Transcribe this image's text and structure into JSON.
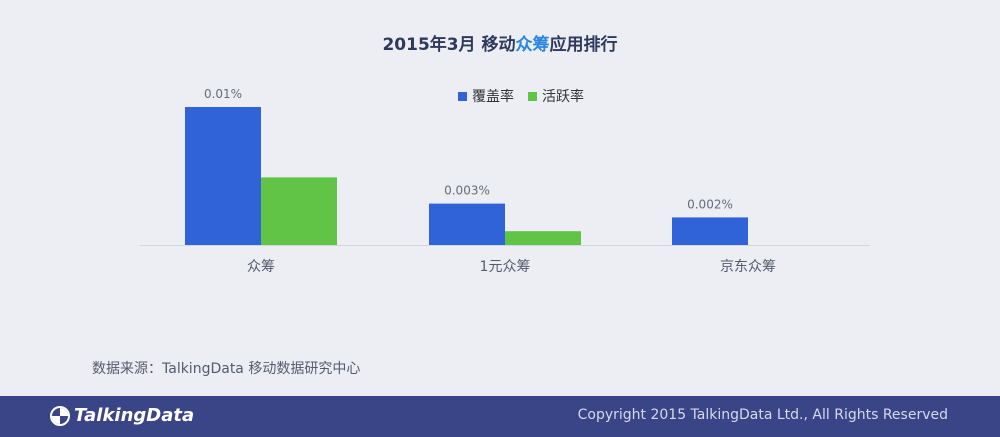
{
  "title": {
    "prefix": "2015年3月 移动",
    "highlight": "众筹",
    "suffix": "应用排行"
  },
  "legend": [
    {
      "label": "覆盖率",
      "color": "#3063d8"
    },
    {
      "label": "活跃率",
      "color": "#62c447"
    }
  ],
  "chart_data": {
    "type": "bar",
    "categories": [
      "众筹",
      "1元众筹",
      "京东众筹"
    ],
    "series": [
      {
        "name": "覆盖率",
        "values": [
          0.01,
          0.003,
          0.002
        ],
        "labels": [
          "0.01%",
          "0.003%",
          "0.002%"
        ],
        "color": "#3063d8"
      },
      {
        "name": "活跃率",
        "values": [
          0.0049,
          0.001,
          0
        ],
        "color": "#62c447"
      }
    ],
    "ylim": [
      0,
      0.01
    ],
    "legend_position": "top-center",
    "grid": false
  },
  "source": "数据来源：TalkingData 移动数据研究中心",
  "footer": {
    "logo": "TalkingData",
    "copyright": "Copyright 2015 TalkingData Ltd., All Rights Reserved"
  }
}
